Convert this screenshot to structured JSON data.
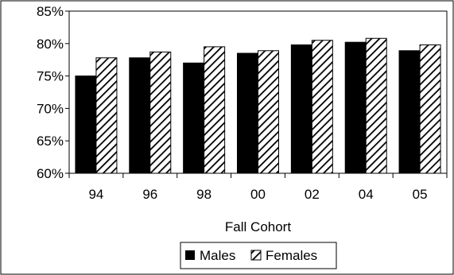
{
  "chart_data": {
    "type": "bar",
    "categories": [
      "94",
      "96",
      "98",
      "00",
      "02",
      "04",
      "05"
    ],
    "series": [
      {
        "name": "Males",
        "values": [
          75.0,
          77.8,
          77.0,
          78.5,
          79.8,
          80.2,
          78.9
        ],
        "pattern": "solid"
      },
      {
        "name": "Females",
        "values": [
          77.8,
          78.7,
          79.5,
          78.9,
          80.5,
          80.8,
          79.8
        ],
        "pattern": "diagonal-hatch"
      }
    ],
    "title": "",
    "xlabel": "Fall Cohort",
    "ylabel": "",
    "ylim": [
      60,
      85
    ],
    "yticks": [
      "60%",
      "65%",
      "70%",
      "75%",
      "80%",
      "85%"
    ],
    "grid": false,
    "legend": "bottom-center"
  },
  "colors": {
    "bar_fill": "#000000",
    "background": "#ffffff",
    "axis": "#000000"
  }
}
